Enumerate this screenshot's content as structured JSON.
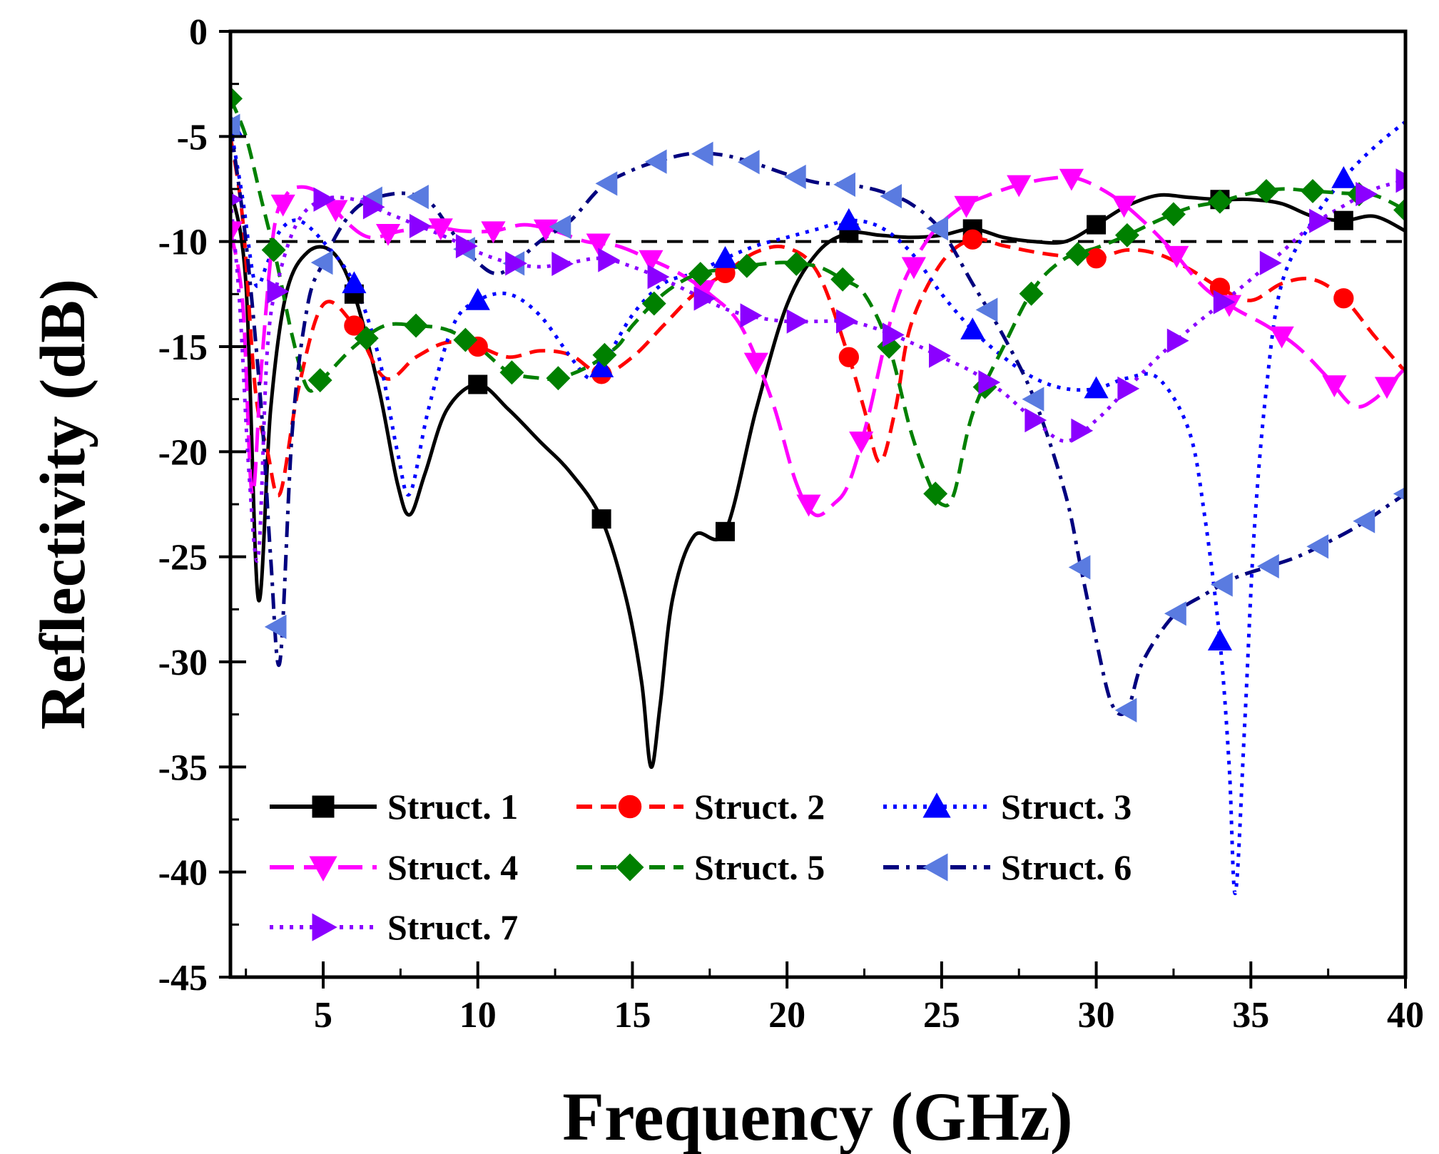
{
  "chart_data": {
    "type": "line",
    "title": "",
    "xlabel": "Frequency (GHz)",
    "ylabel": "Reflectivity (dB)",
    "xlim": [
      2,
      40
    ],
    "ylim": [
      -45,
      0
    ],
    "xticks": [
      5,
      10,
      15,
      20,
      25,
      30,
      35,
      40
    ],
    "xtick_labels": [
      "5",
      "10",
      "15",
      "20",
      "25",
      "30",
      "35",
      "40"
    ],
    "yticks": [
      0,
      -5,
      -10,
      -15,
      -20,
      -25,
      -30,
      -35,
      -40,
      -45
    ],
    "ytick_labels": [
      "0",
      "-5",
      "-10",
      "-15",
      "-20",
      "-25",
      "-30",
      "-35",
      "-40",
      "-45"
    ],
    "reference_line": {
      "y": -10,
      "style": "dashed",
      "color": "#000000"
    },
    "legend": {
      "placement": "bottom-left",
      "columns": 3
    },
    "series": [
      {
        "name": "Struct. 1",
        "color": "#000000",
        "dash": "solid",
        "marker": "square",
        "x": [
          2,
          2.5,
          2.9,
          3.3,
          3.8,
          4.5,
          5.3,
          6,
          6.8,
          7.4,
          7.8,
          8.3,
          9,
          10,
          11,
          12,
          13,
          14,
          14.8,
          15.3,
          15.6,
          15.9,
          16.3,
          17,
          18,
          19,
          20,
          21,
          22,
          23,
          24,
          25,
          26,
          27,
          28,
          29,
          30,
          31,
          32,
          33,
          34,
          35,
          36,
          37,
          38,
          39,
          40
        ],
        "y": [
          -7.5,
          -12,
          -27,
          -18,
          -12.5,
          -10.5,
          -10.5,
          -12.5,
          -17,
          -21.5,
          -23,
          -21,
          -18,
          -16.8,
          -18,
          -19.5,
          -21,
          -23.2,
          -27,
          -31,
          -35,
          -32,
          -27,
          -24,
          -23.8,
          -18,
          -13,
          -10.5,
          -9.6,
          -9.7,
          -9.8,
          -9.7,
          -9.4,
          -9.8,
          -10,
          -10,
          -9.2,
          -8.3,
          -7.8,
          -7.9,
          -8,
          -8,
          -8.2,
          -8.8,
          -9.0,
          -8.8,
          -9.5
        ],
        "marker_x": [
          6,
          10,
          14,
          18,
          22,
          26,
          30,
          34,
          38
        ]
      },
      {
        "name": "Struct. 2",
        "color": "#FF0000",
        "dash": "dashed",
        "marker": "circle",
        "x": [
          2,
          2.4,
          2.8,
          3.2,
          3.6,
          4.2,
          5,
          6,
          7,
          8,
          9,
          10,
          11,
          12,
          13,
          14,
          15,
          16,
          17,
          18,
          19,
          20,
          21,
          22,
          22.5,
          23,
          23.5,
          24,
          25,
          26,
          27,
          28,
          29,
          30,
          31,
          32,
          33,
          34,
          35,
          36,
          37,
          38,
          39,
          40
        ],
        "y": [
          -5,
          -9,
          -17,
          -20,
          -22,
          -17,
          -13,
          -14,
          -16.5,
          -15.5,
          -14.8,
          -15,
          -15.5,
          -15.2,
          -15.4,
          -16.3,
          -15.5,
          -14,
          -12.5,
          -11.5,
          -10.5,
          -10.3,
          -11.5,
          -15.5,
          -18,
          -20.5,
          -18,
          -14,
          -11,
          -9.9,
          -10.2,
          -10.5,
          -10.7,
          -10.8,
          -10.4,
          -10.6,
          -11.3,
          -12.2,
          -12.8,
          -12,
          -11.8,
          -12.7,
          -14.5,
          -16.2
        ],
        "marker_x": [
          6,
          10,
          14,
          18,
          22,
          26,
          30,
          34,
          38
        ]
      },
      {
        "name": "Struct. 3",
        "color": "#0000FF",
        "dash": "dotted",
        "marker": "triangle-up",
        "x": [
          2,
          2.4,
          2.8,
          3.2,
          3.6,
          4.2,
          5,
          6,
          6.8,
          7.4,
          7.8,
          8.4,
          9.2,
          10,
          11,
          12,
          13,
          13.6,
          14,
          15,
          16,
          17,
          18,
          19,
          20,
          21,
          22,
          23,
          24,
          25,
          26,
          27,
          28,
          29,
          30,
          31,
          32,
          33,
          33.5,
          34,
          34.3,
          34.5,
          34.8,
          35.1,
          35.5,
          36,
          37,
          38,
          39,
          40
        ],
        "y": [
          -4.5,
          -8,
          -12,
          -11,
          -9.5,
          -9,
          -10,
          -12,
          -15.5,
          -20,
          -22,
          -18,
          -14,
          -12.8,
          -12.5,
          -13.5,
          -15.5,
          -16.5,
          -16,
          -13.5,
          -12,
          -11.5,
          -10.8,
          -10.2,
          -9.8,
          -9.4,
          -9,
          -9.3,
          -10.5,
          -12.5,
          -14.2,
          -15.5,
          -16.5,
          -17,
          -17,
          -16.5,
          -16.5,
          -19,
          -23,
          -29,
          -35,
          -41,
          -33,
          -24,
          -17,
          -12,
          -9,
          -7,
          -5.5,
          -4.3
        ],
        "marker_x": [
          2,
          6,
          10,
          14,
          18,
          22,
          26,
          30,
          34,
          38
        ]
      },
      {
        "name": "Struct. 4",
        "color": "#FF00FF",
        "dash": "long-dash",
        "marker": "triangle-down",
        "x": [
          2,
          2.4,
          2.7,
          3.0,
          3.4,
          3.8,
          4.3,
          5,
          5.7,
          6.5,
          7.5,
          8.5,
          9.5,
          10.5,
          11.5,
          12.5,
          13.5,
          14.5,
          15.5,
          16.5,
          17.5,
          18.5,
          19.5,
          20.3,
          20.9,
          21.5,
          22,
          22.6,
          23.5,
          24.5,
          25.5,
          26.5,
          27.5,
          28.5,
          29.4,
          30.5,
          31.5,
          32.5,
          33.5,
          34.5,
          35.5,
          36.5,
          37.5,
          38.3,
          39,
          40
        ],
        "y": [
          -9.5,
          -13,
          -22,
          -16,
          -9.5,
          -7.8,
          -7.4,
          -7.8,
          -9,
          -9.8,
          -9.5,
          -9.3,
          -9.5,
          -9.5,
          -9.2,
          -9.5,
          -10,
          -10.2,
          -10.8,
          -11.5,
          -12.5,
          -14,
          -17.5,
          -21.5,
          -23,
          -22.5,
          -21.5,
          -18.5,
          -13,
          -10,
          -8.5,
          -7.8,
          -7.3,
          -7.0,
          -7.0,
          -7.8,
          -9.0,
          -10.5,
          -12.2,
          -13.2,
          -14,
          -15,
          -16.5,
          -17.8,
          -17.5,
          -16
        ]
      },
      {
        "name": "Struct. 5",
        "color": "#008000",
        "dash": "dashed",
        "marker": "diamond",
        "x": [
          2,
          2.5,
          3,
          3.5,
          4,
          4.5,
          5,
          6,
          7,
          8,
          9,
          10,
          11,
          12,
          12.6,
          13.5,
          14.5,
          15,
          16,
          17,
          18,
          19,
          20,
          21,
          21.8,
          22.5,
          23.3,
          24,
          24.6,
          25,
          25.4,
          26,
          27,
          28,
          29,
          30,
          31,
          32,
          33,
          34,
          35,
          36,
          37,
          38,
          39,
          40
        ],
        "y": [
          -3.2,
          -5,
          -8,
          -11,
          -14.5,
          -17,
          -16.5,
          -15,
          -14,
          -14,
          -14.2,
          -15,
          -16.2,
          -16.5,
          -16.5,
          -16,
          -15,
          -14,
          -12.5,
          -11.6,
          -11.3,
          -11.1,
          -11,
          -11.2,
          -11.8,
          -12.5,
          -15,
          -19,
          -21.5,
          -22.5,
          -22,
          -18.2,
          -15,
          -12.2,
          -10.8,
          -10.3,
          -9.7,
          -9.0,
          -8.4,
          -8.1,
          -7.7,
          -7.5,
          -7.6,
          -7.7,
          -7.8,
          -8.5
        ],
        "marker_x": [
          2,
          3.4,
          4.9,
          6.4,
          8,
          9.6,
          11.1,
          12.6,
          14.1,
          15.7,
          17.2,
          18.7,
          20.3,
          21.8,
          23.3,
          24.8,
          26.4,
          27.9,
          29.4,
          31,
          32.5,
          34,
          35.5,
          37,
          38.5,
          40
        ]
      },
      {
        "name": "Struct. 6",
        "color": "#00007F",
        "dash": "dash-dot",
        "marker": "triangle-left",
        "marker_color": "#5A7BE0",
        "x": [
          2,
          2.5,
          3,
          3.3,
          3.6,
          4.0,
          4.5,
          5,
          5.5,
          6,
          6.5,
          7,
          7.5,
          8,
          8.5,
          9,
          9.5,
          10,
          10.5,
          11,
          12,
          13,
          14,
          15,
          16,
          17,
          18,
          19,
          20,
          21,
          22,
          23,
          24,
          25,
          26,
          27,
          28,
          29,
          29.5,
          30,
          30.5,
          31,
          31.5,
          32.5,
          33.5,
          34.5,
          35.5,
          36.5,
          37.5,
          38.5,
          39.5,
          40
        ],
        "y": [
          -4.5,
          -10,
          -18,
          -25,
          -30,
          -19,
          -13,
          -11,
          -9.5,
          -8.5,
          -8,
          -7.8,
          -7.7,
          -7.8,
          -8.2,
          -9.2,
          -10.2,
          -11,
          -11.5,
          -11.3,
          -10,
          -9,
          -7.4,
          -6.6,
          -6.1,
          -5.8,
          -5.9,
          -6.3,
          -6.8,
          -7.2,
          -7.3,
          -7.6,
          -8.2,
          -9.5,
          -12,
          -14.5,
          -17.5,
          -22,
          -25.5,
          -29,
          -32,
          -32.3,
          -30,
          -27.8,
          -26.8,
          -26,
          -25.5,
          -25,
          -24.3,
          -23.5,
          -22.5,
          -22
        ],
        "marker_x": [
          2,
          3.5,
          5,
          6.6,
          8.1,
          9.6,
          11.2,
          12.7,
          14.2,
          15.8,
          17.3,
          18.8,
          20.3,
          21.9,
          23.4,
          24.9,
          26.5,
          28,
          29.5,
          31,
          32.6,
          34.1,
          35.6,
          37.2,
          38.7,
          40
        ]
      },
      {
        "name": "Struct. 7",
        "color": "#8B00FF",
        "dash": "dotted",
        "marker": "triangle-right",
        "x": [
          2,
          2.3,
          2.6,
          2.9,
          3.2,
          3.6,
          4.2,
          5,
          6,
          7,
          8,
          9,
          10,
          11,
          12,
          13,
          14,
          15,
          16,
          17,
          18,
          19,
          20,
          21,
          22,
          23,
          24,
          25,
          26,
          27,
          28,
          29,
          30,
          31,
          32,
          33,
          34,
          35,
          36,
          37,
          38,
          39,
          40
        ],
        "y": [
          -8,
          -13,
          -21,
          -25,
          -15,
          -11.5,
          -9,
          -8,
          -8,
          -8.6,
          -9.2,
          -9.8,
          -10.5,
          -11,
          -11.2,
          -11.0,
          -10.8,
          -11.2,
          -11.8,
          -12.5,
          -13.2,
          -13.6,
          -13.8,
          -13.8,
          -13.8,
          -14.2,
          -14.8,
          -15.5,
          -16.2,
          -17.2,
          -18.5,
          -19.5,
          -18.5,
          -17,
          -15.5,
          -14.2,
          -13.0,
          -11.8,
          -10.5,
          -9.2,
          -8.3,
          -7.5,
          -7.1
        ],
        "marker_x": [
          2,
          3.5,
          5,
          6.6,
          8.1,
          9.6,
          11.2,
          12.7,
          14.2,
          15.8,
          17.3,
          18.8,
          20.3,
          21.9,
          23.4,
          24.9,
          26.5,
          28,
          29.5,
          31,
          32.6,
          34.1,
          35.6,
          37.2,
          38.7,
          40
        ]
      }
    ]
  }
}
